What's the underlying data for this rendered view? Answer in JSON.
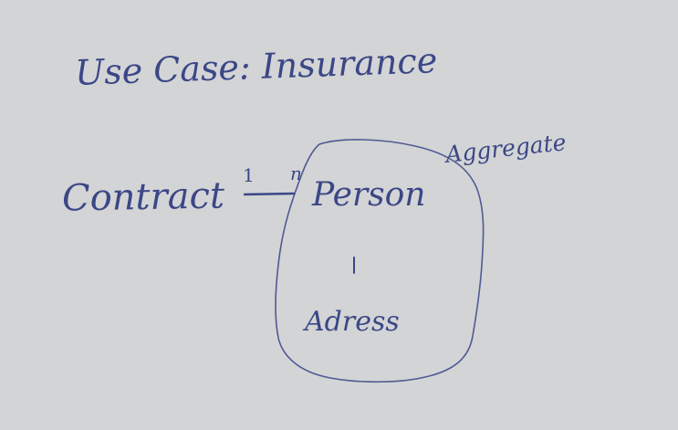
{
  "title": "Use Case: Insurance",
  "nodes": {
    "contract": "Contract",
    "person": "Person",
    "address": "Adress"
  },
  "relations": {
    "contract_person": {
      "source_multiplicity": "1",
      "target_multiplicity": "n"
    }
  },
  "aggregate": {
    "label": "Aggregate"
  },
  "colors": {
    "paper": "#d3d4d6",
    "ink": "#3b4786"
  }
}
